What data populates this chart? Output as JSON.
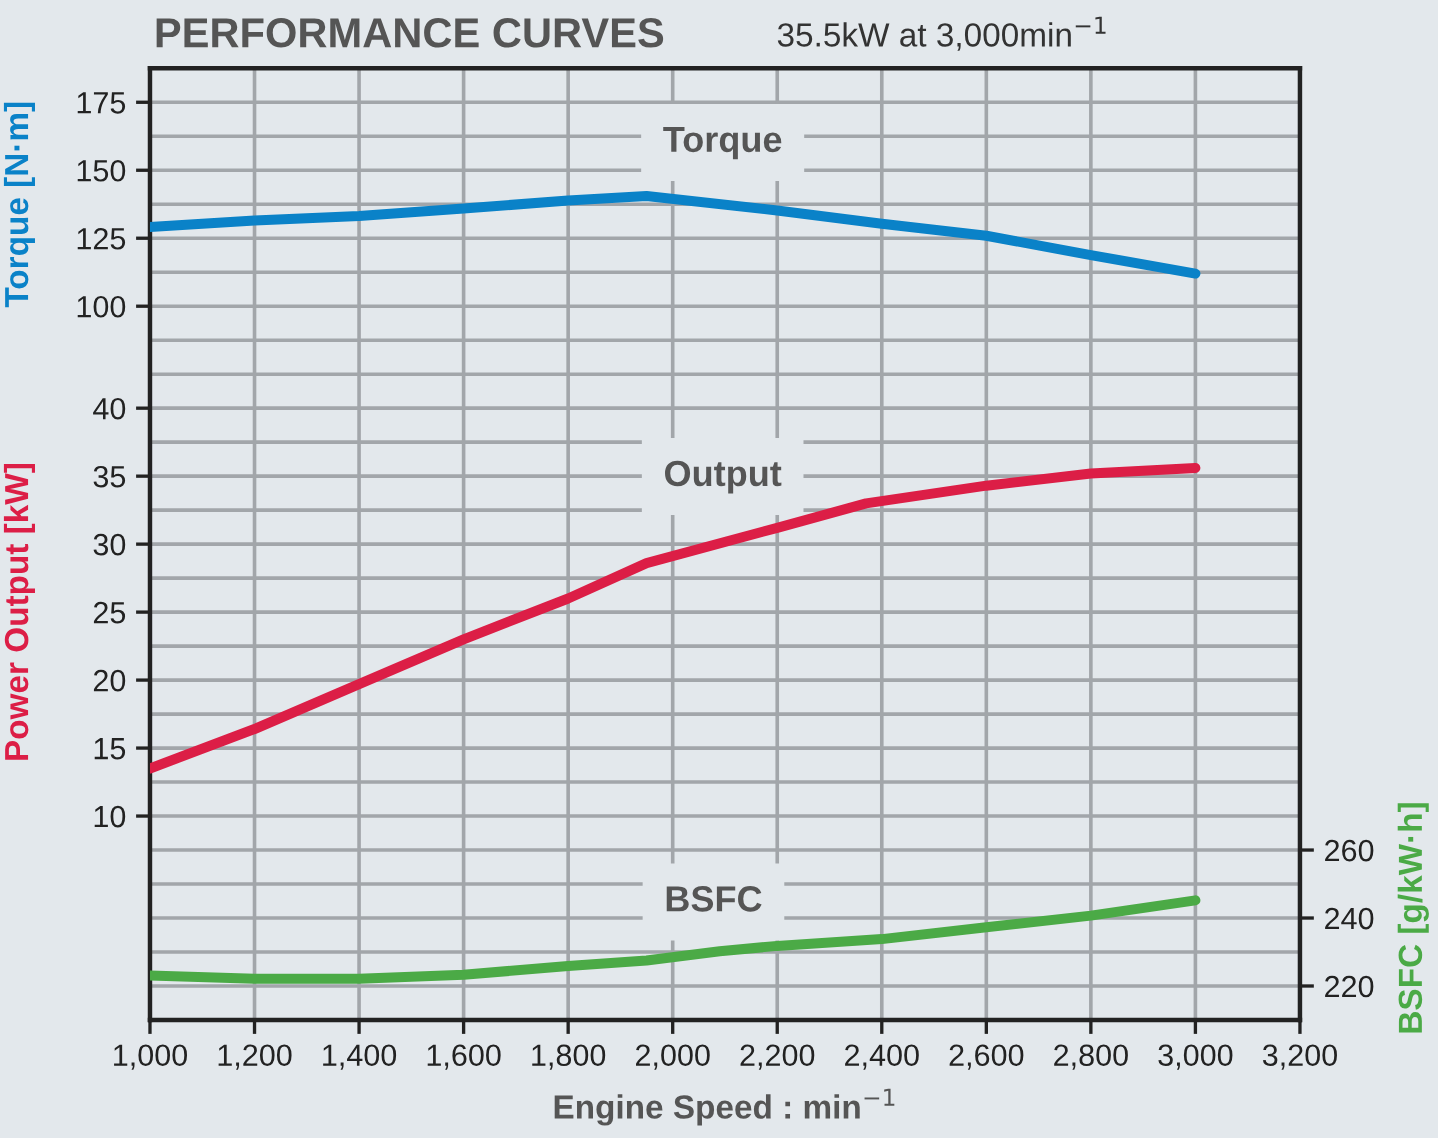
{
  "chart_data": {
    "type": "line",
    "title": "PERFORMANCE CURVES",
    "subtitle": "35.5kW at 3,000min$^{−1}$",
    "xlabel": "Engine Speed : min$^{−1}$",
    "ylabel": "Torque [N·m]",
    "y3label": "Power Output [kW]",
    "y2label": "BSFC [g/kW·h]",
    "xlim": [
      1000,
      3200
    ],
    "xticks": [
      {
        "value": 1000,
        "label": "1,000"
      },
      {
        "value": 1200,
        "label": "1,200"
      },
      {
        "value": 1400,
        "label": "1,400"
      },
      {
        "value": 1600,
        "label": "1,600"
      },
      {
        "value": 1800,
        "label": "1,800"
      },
      {
        "value": 2000,
        "label": "2,000"
      },
      {
        "value": 2200,
        "label": "2,200"
      },
      {
        "value": 2400,
        "label": "2,400"
      },
      {
        "value": 2600,
        "label": "2,600"
      },
      {
        "value": 2800,
        "label": "2,800"
      },
      {
        "value": 3000,
        "label": "3,000"
      },
      {
        "value": 3200,
        "label": "3,200"
      }
    ],
    "ylim": [
      -162.5,
      187.5
    ],
    "yticks": [
      100,
      125,
      150,
      175
    ],
    "y3lim": [
      -5,
      65
    ],
    "y3ticks": [
      10,
      15,
      20,
      25,
      30,
      35,
      40
    ],
    "y2lim": [
      210,
      490
    ],
    "y2ticks": [
      220,
      240,
      260
    ],
    "grid": true,
    "line_style": "solid",
    "series": [
      {
        "name": "Torque",
        "color": "#0a82c8",
        "axis": "y",
        "x": [
          1000,
          1200,
          1400,
          1600,
          1800,
          1950,
          2200,
          2400,
          2600,
          2800,
          3000
        ],
        "values": [
          129.1,
          131.5,
          133.2,
          135.9,
          138.9,
          140.5,
          135.2,
          130.3,
          125.9,
          118.8,
          112
        ]
      },
      {
        "name": "Output",
        "color": "#dc1e46",
        "axis": "y3",
        "x": [
          1000,
          1200,
          1400,
          1600,
          1800,
          1950,
          2200,
          2370,
          2600,
          2800,
          3000
        ],
        "values": [
          13.5,
          16.4,
          19.7,
          23.0,
          26.0,
          28.6,
          31.2,
          33.0,
          34.3,
          35.2,
          35.6
        ]
      },
      {
        "name": "BSFC",
        "color": "#4baa46",
        "axis": "y2",
        "x": [
          1000,
          1200,
          1400,
          1600,
          1800,
          1950,
          2090,
          2200,
          2400,
          2600,
          2800,
          3000
        ],
        "values": [
          223.1,
          222.1,
          222.1,
          223.3,
          225.9,
          227.5,
          230.2,
          231.8,
          233.8,
          237.3,
          240.7,
          245.2
        ]
      }
    ]
  }
}
